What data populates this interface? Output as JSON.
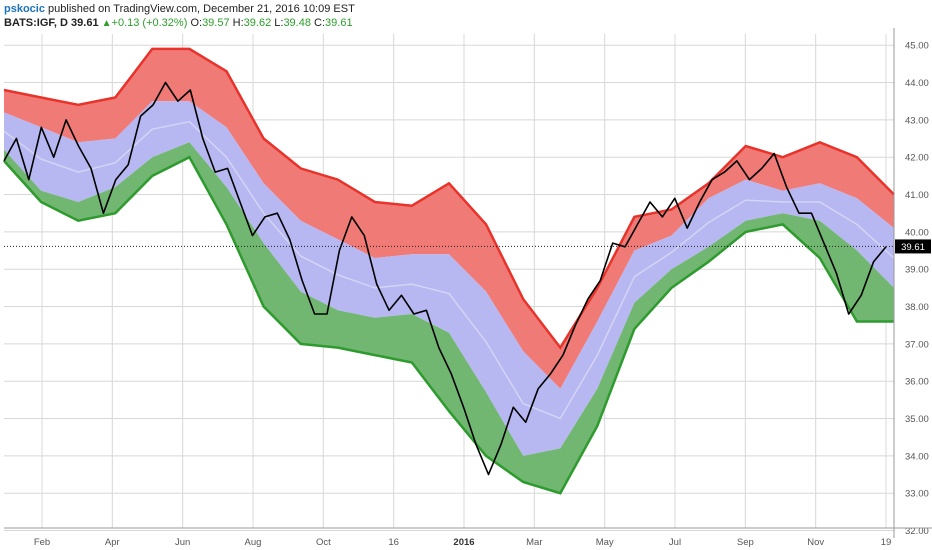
{
  "header": {
    "author": "pskocic",
    "published_text": "published on TradingView.com, December 21, 2016 10:09 EST",
    "symbol": "BATS:IGF, D",
    "last": "39.61",
    "change": "+0.13 (+0.32%)",
    "open_label": "O:",
    "open": "39.57",
    "high_label": "H:",
    "high": "39.62",
    "low_label": "L:",
    "low": "39.48",
    "close_label": "C:",
    "close": "39.61"
  },
  "price_tag": "39.61",
  "colors": {
    "price_line": "#000000",
    "upper_band_line": "#e8332b",
    "lower_band_line": "#2e9b2e",
    "upper_fill": "#f07a76",
    "middle_fill": "#b7b7f2",
    "lower_fill": "#71b671",
    "grid": "#d8d8d8",
    "up_text": "#2ca02c"
  },
  "chart_data": {
    "type": "line",
    "title": "",
    "xlabel": "",
    "ylabel": "",
    "ylim": [
      31.8,
      45.3
    ],
    "y_ticks": [
      "32.00",
      "33.00",
      "34.00",
      "35.00",
      "36.00",
      "37.00",
      "38.00",
      "39.00",
      "40.00",
      "41.00",
      "42.00",
      "43.00",
      "44.00",
      "45.00"
    ],
    "x_ticks": [
      "Feb",
      "Apr",
      "Jun",
      "Aug",
      "Oct",
      "16",
      "2016",
      "Mar",
      "May",
      "Jul",
      "Sep",
      "Nov",
      "19"
    ],
    "grid": true,
    "legend": "none",
    "bands": {
      "upper_outer": [
        43.8,
        43.6,
        43.4,
        43.6,
        44.9,
        44.9,
        44.3,
        42.5,
        41.7,
        41.4,
        40.8,
        40.7,
        41.3,
        40.2,
        38.2,
        36.9,
        38.5,
        40.4,
        40.6,
        41.3,
        42.3,
        42.0,
        42.4,
        42.0,
        41.0
      ],
      "upper_inner": [
        43.2,
        42.8,
        42.4,
        42.5,
        43.5,
        43.5,
        42.8,
        41.3,
        40.3,
        39.8,
        39.3,
        39.4,
        39.4,
        38.4,
        36.8,
        35.8,
        37.6,
        39.5,
        39.9,
        40.9,
        41.4,
        41.1,
        41.3,
        40.9,
        40.1
      ],
      "lower_inner": [
        42.2,
        41.1,
        40.8,
        41.2,
        42.0,
        42.4,
        41.2,
        39.7,
        38.4,
        37.9,
        37.7,
        37.8,
        37.3,
        35.7,
        34.0,
        34.2,
        35.8,
        38.1,
        39.0,
        39.6,
        40.3,
        40.5,
        40.3,
        39.5,
        38.5
      ],
      "lower_outer": [
        41.9,
        40.8,
        40.3,
        40.5,
        41.5,
        42.0,
        40.2,
        38.0,
        37.0,
        36.9,
        36.7,
        36.5,
        35.2,
        34.0,
        33.3,
        33.0,
        34.8,
        37.4,
        38.5,
        39.2,
        40.0,
        40.2,
        39.3,
        37.6,
        37.6
      ]
    },
    "series": [
      {
        "values": [
          41.9,
          42.5,
          41.4,
          42.8,
          42.0,
          43.0,
          42.3,
          41.7,
          40.5,
          41.4,
          41.8,
          43.1,
          43.4,
          44.0,
          43.5,
          43.8,
          42.5,
          41.6,
          41.7,
          40.8,
          39.9,
          40.4,
          40.5,
          39.8,
          38.7,
          37.8,
          37.8,
          39.5,
          40.4,
          39.9,
          38.6,
          37.9,
          38.3,
          37.8,
          37.9,
          36.9,
          36.2,
          35.3,
          34.3,
          33.5,
          34.3,
          35.3,
          34.9,
          35.8,
          36.2,
          36.7,
          37.5,
          38.2,
          38.7,
          39.7,
          39.6,
          40.2,
          40.8,
          40.4,
          40.9,
          40.1,
          40.8,
          41.4,
          41.6,
          41.9,
          41.4,
          41.7,
          42.1,
          41.2,
          40.5,
          40.5,
          39.7,
          38.9,
          37.8,
          38.3,
          39.2,
          39.6
        ]
      }
    ]
  }
}
